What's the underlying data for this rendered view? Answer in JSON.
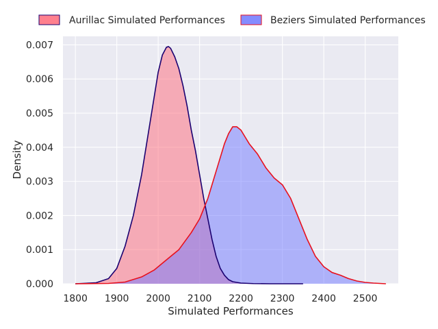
{
  "chart_data": {
    "type": "area",
    "title": "",
    "xlabel": "Simulated Performances",
    "ylabel": "Density",
    "xlim": [
      1770,
      2580
    ],
    "ylim": [
      0,
      0.00725
    ],
    "xticks": [
      1800,
      1900,
      2000,
      2100,
      2200,
      2300,
      2400,
      2500
    ],
    "xtick_labels": [
      "1800",
      "1900",
      "2000",
      "2100",
      "2200",
      "2300",
      "2400",
      "2500"
    ],
    "yticks": [
      0,
      0.001,
      0.002,
      0.003,
      0.004,
      0.005,
      0.006,
      0.007
    ],
    "ytick_labels": [
      "0.000",
      "0.001",
      "0.002",
      "0.003",
      "0.004",
      "0.005",
      "0.006",
      "0.007"
    ],
    "grid": true,
    "legend_position": "top",
    "series": [
      {
        "name": "Aurillac Simulated Performances",
        "fill_color": "#ff6a7a",
        "line_color": "#1a0070",
        "x": [
          1800,
          1850,
          1880,
          1900,
          1920,
          1940,
          1960,
          1980,
          2000,
          2010,
          2020,
          2025,
          2030,
          2040,
          2050,
          2060,
          2070,
          2080,
          2090,
          2100,
          2110,
          2120,
          2130,
          2140,
          2150,
          2160,
          2170,
          2180,
          2200,
          2230,
          2270,
          2300,
          2350
        ],
        "values": [
          0,
          3e-05,
          0.00015,
          0.00045,
          0.0011,
          0.002,
          0.0032,
          0.0047,
          0.0062,
          0.0067,
          0.00693,
          0.00695,
          0.0069,
          0.00665,
          0.0063,
          0.0058,
          0.0052,
          0.0045,
          0.0039,
          0.0032,
          0.0025,
          0.0019,
          0.0013,
          0.0008,
          0.00045,
          0.00025,
          0.00012,
          6e-05,
          2e-05,
          5e-06,
          0,
          0,
          0
        ]
      },
      {
        "name": "Beziers Simulated Performances",
        "fill_color": "#6f78ff",
        "line_color": "#e8101c",
        "x": [
          1800,
          1880,
          1920,
          1960,
          1990,
          2020,
          2050,
          2080,
          2100,
          2120,
          2140,
          2160,
          2170,
          2180,
          2190,
          2200,
          2210,
          2220,
          2240,
          2260,
          2280,
          2300,
          2320,
          2340,
          2360,
          2380,
          2400,
          2420,
          2440,
          2460,
          2480,
          2500,
          2520,
          2550
        ],
        "values": [
          0,
          1e-05,
          5e-05,
          0.0002,
          0.0004,
          0.0007,
          0.001,
          0.0015,
          0.0019,
          0.0025,
          0.0033,
          0.0041,
          0.0044,
          0.0046,
          0.0046,
          0.0045,
          0.0043,
          0.0041,
          0.0038,
          0.0034,
          0.0031,
          0.0029,
          0.0025,
          0.0019,
          0.0013,
          0.0008,
          0.0005,
          0.00033,
          0.00025,
          0.00015,
          8e-05,
          4e-05,
          2e-05,
          0
        ]
      }
    ]
  }
}
